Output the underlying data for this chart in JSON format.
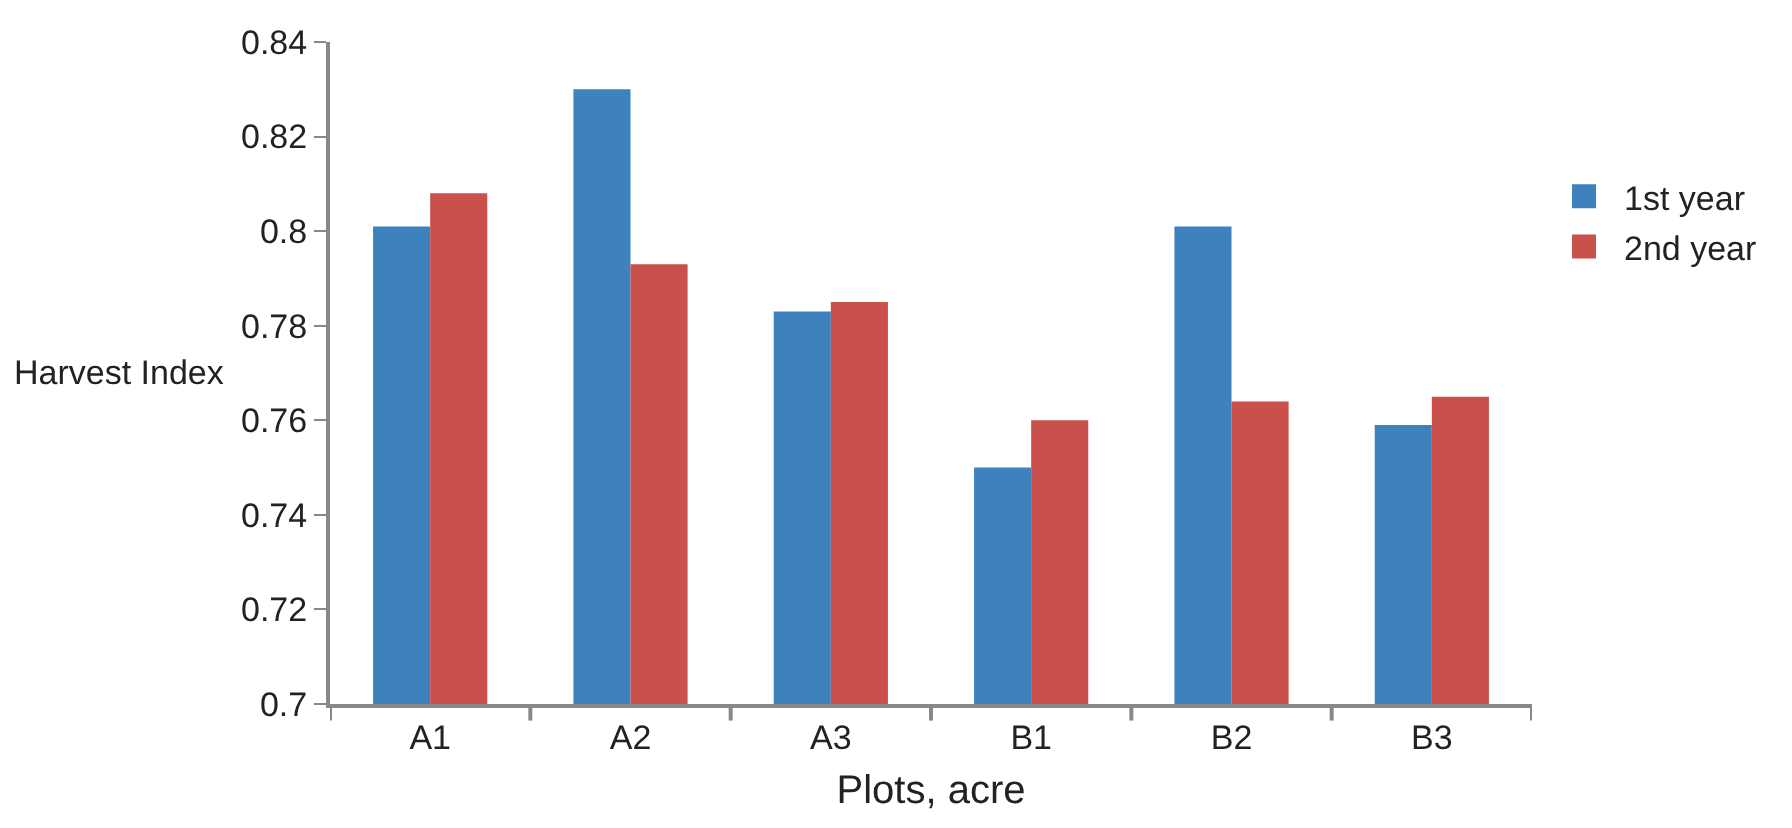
{
  "chart_data": {
    "type": "bar",
    "xlabel": "Plots, acre",
    "ylabel": "Harvest Index",
    "categories": [
      "A1",
      "A2",
      "A3",
      "B1",
      "B2",
      "B3"
    ],
    "series": [
      {
        "name": "1st year",
        "color": "#3d81bd",
        "values": [
          0.801,
          0.83,
          0.783,
          0.75,
          0.801,
          0.759
        ]
      },
      {
        "name": "2nd year",
        "color": "#c9504b",
        "values": [
          0.808,
          0.793,
          0.785,
          0.76,
          0.764,
          0.765
        ]
      }
    ],
    "ylim": [
      0.7,
      0.84
    ],
    "yticks": [
      0.7,
      0.72,
      0.74,
      0.76,
      0.78,
      0.8,
      0.82,
      0.84
    ],
    "legend": "right"
  }
}
